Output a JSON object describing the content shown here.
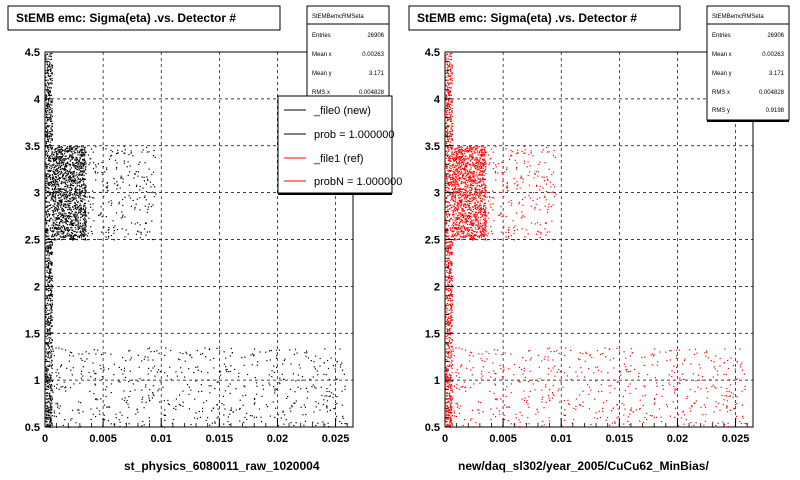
{
  "chart_data": [
    {
      "type": "scatter",
      "title": "StEMB emc: Sigma(eta) .vs. Detector #",
      "xlabel": "st_physics_6080011_raw_1020004",
      "ylabel": "",
      "xlim": [
        0,
        0.0265
      ],
      "ylim": [
        0.5,
        4.5
      ],
      "xticks": [
        "0",
        "0.005",
        "0.01",
        "0.015",
        "0.02",
        "0.025"
      ],
      "yticks": [
        "0.5",
        "1",
        "1.5",
        "2",
        "2.5",
        "3",
        "3.5",
        "4",
        "4.5"
      ],
      "grid": true,
      "stats": {
        "header": "StEMBemcRMSeta",
        "rows": [
          {
            "label": "Entries",
            "value": "26906"
          },
          {
            "label": "Mean x",
            "value": "0.00263"
          },
          {
            "label": "Mean y",
            "value": "3.171"
          },
          {
            "label": "RMS x",
            "value": "0.004828"
          }
        ]
      },
      "legend": {
        "placement": "top-right",
        "entries": [
          {
            "label": "_file0 (new)",
            "color": "#000000"
          },
          {
            "label": "prob = 1.000000",
            "color": "#000000"
          },
          {
            "label": "_file1 (ref)",
            "color": "#ff0000"
          },
          {
            "label": "probN = 1.000000",
            "color": "#ff0000"
          }
        ]
      },
      "series": [
        {
          "color": "#000000",
          "clusters": [
            {
              "x": [
                0.0,
                0.0006
              ],
              "y": [
                0.5,
                4.5
              ],
              "count": 900
            },
            {
              "x": [
                0.0006,
                0.0035
              ],
              "y": [
                2.5,
                3.5
              ],
              "count": 1300
            },
            {
              "x": [
                0.0035,
                0.0095
              ],
              "y": [
                2.5,
                3.5
              ],
              "count": 230
            },
            {
              "x": [
                0.0,
                0.026
              ],
              "y": [
                0.5,
                1.35
              ],
              "count": 620
            }
          ]
        }
      ]
    },
    {
      "type": "scatter",
      "title": "StEMB emc: Sigma(eta) .vs. Detector #",
      "xlabel": "new/daq_sl302/year_2005/CuCu62_MinBias/",
      "ylabel": "",
      "xlim": [
        0,
        0.0265
      ],
      "ylim": [
        0.5,
        4.5
      ],
      "xticks": [
        "0",
        "0.005",
        "0.01",
        "0.015",
        "0.02",
        "0.025"
      ],
      "yticks": [
        "0.5",
        "1",
        "1.5",
        "2",
        "2.5",
        "3",
        "3.5",
        "4",
        "4.5"
      ],
      "grid": true,
      "stats": {
        "header": "StEMBemcRMSeta",
        "rows": [
          {
            "label": "Entries",
            "value": "26906"
          },
          {
            "label": "Mean x",
            "value": "0.00263"
          },
          {
            "label": "Mean y",
            "value": "3.171"
          },
          {
            "label": "RMS x",
            "value": "0.004828"
          },
          {
            "label": "RMS y",
            "value": "0.9198"
          }
        ]
      },
      "series": [
        {
          "color": "#ff0000",
          "clusters": [
            {
              "x": [
                0.0,
                0.0006
              ],
              "y": [
                0.5,
                4.5
              ],
              "count": 900
            },
            {
              "x": [
                0.0006,
                0.0035
              ],
              "y": [
                2.5,
                3.5
              ],
              "count": 1300
            },
            {
              "x": [
                0.0035,
                0.0095
              ],
              "y": [
                2.5,
                3.5
              ],
              "count": 230
            },
            {
              "x": [
                0.0,
                0.026
              ],
              "y": [
                0.5,
                1.35
              ],
              "count": 620
            }
          ]
        }
      ]
    }
  ]
}
